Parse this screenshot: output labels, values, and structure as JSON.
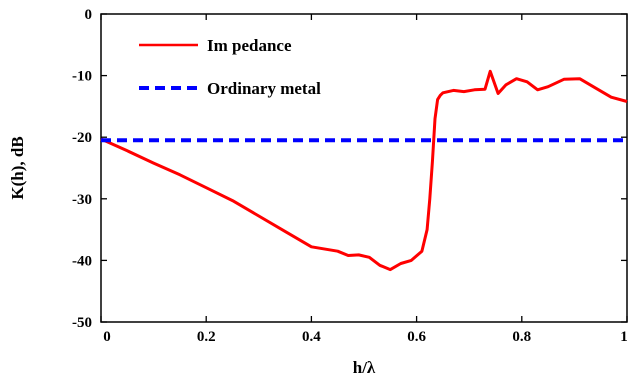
{
  "chart_data": {
    "type": "line",
    "title": "",
    "xlabel": "h/λ",
    "ylabel": "K(h), dB",
    "xlim": [
      0,
      1
    ],
    "ylim": [
      -50,
      0
    ],
    "x_ticks": [
      "0",
      "0.2",
      "0.4",
      "0.6",
      "0.8",
      "1"
    ],
    "y_ticks": [
      "0",
      "-10",
      "-20",
      "-30",
      "-40",
      "-50"
    ],
    "grid": false,
    "legend_placement": "top-left",
    "series": [
      {
        "name": "Im pedance",
        "color": "#ff0000",
        "style": "solid",
        "x": [
          0,
          0.05,
          0.1,
          0.15,
          0.2,
          0.25,
          0.3,
          0.35,
          0.4,
          0.45,
          0.47,
          0.49,
          0.51,
          0.53,
          0.55,
          0.57,
          0.59,
          0.61,
          0.62,
          0.625,
          0.63,
          0.635,
          0.64,
          0.645,
          0.65,
          0.67,
          0.69,
          0.71,
          0.73,
          0.74,
          0.755,
          0.77,
          0.79,
          0.81,
          0.83,
          0.85,
          0.88,
          0.91,
          0.94,
          0.97,
          1.0
        ],
        "y": [
          -20.3,
          -22.2,
          -24.2,
          -26.1,
          -28.2,
          -30.3,
          -32.8,
          -35.3,
          -37.8,
          -38.5,
          -39.2,
          -39.1,
          -39.5,
          -40.8,
          -41.5,
          -40.5,
          -40.0,
          -38.5,
          -35,
          -30,
          -24,
          -17,
          -13.9,
          -13.2,
          -12.8,
          -12.4,
          -12.6,
          -12.3,
          -12.2,
          -9.3,
          -12.9,
          -11.5,
          -10.5,
          -11.0,
          -12.3,
          -11.8,
          -10.6,
          -10.5,
          -12.0,
          -13.5,
          -14.2
        ]
      },
      {
        "name": "Ordinary metal",
        "color": "#0000ff",
        "style": "dashed",
        "x": [
          0,
          1
        ],
        "y": [
          -20.5,
          -20.5
        ]
      }
    ]
  }
}
